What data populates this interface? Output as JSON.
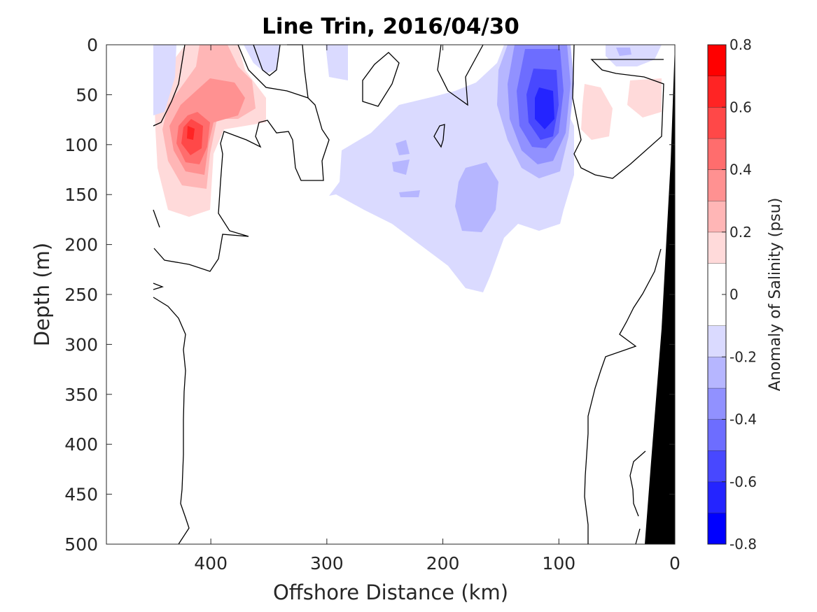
{
  "chart_data": {
    "type": "contour",
    "title": "Line Trin, 2016/04/30",
    "xlabel": "Offshore Distance (km)",
    "ylabel": "Depth (m)",
    "colorbar_label": "Anomaly of Salinity (psu)",
    "xlim": [
      490,
      0
    ],
    "ylim": [
      500,
      0
    ],
    "x_reversed": true,
    "y_reversed": true,
    "x_ticks": [
      400,
      300,
      200,
      100,
      0
    ],
    "y_ticks": [
      0,
      50,
      100,
      150,
      200,
      250,
      300,
      350,
      400,
      450,
      500
    ],
    "colorbar": {
      "range": [
        -0.8,
        0.8
      ],
      "levels": [
        -0.8,
        -0.7,
        -0.6,
        -0.5,
        -0.4,
        -0.3,
        -0.2,
        -0.1,
        0.1,
        0.2,
        0.3,
        0.4,
        0.5,
        0.6,
        0.7,
        0.8
      ],
      "colors": [
        "#0000ff",
        "#2424ff",
        "#4848ff",
        "#6d6dff",
        "#9191ff",
        "#b6b6ff",
        "#dadaff",
        "#ffffff",
        "#ffdada",
        "#ffb6b6",
        "#ff9191",
        "#ff6d6d",
        "#ff4848",
        "#ff2424",
        "#ff0000"
      ],
      "tick_values": [
        -0.8,
        -0.6,
        -0.4,
        -0.2,
        0,
        0.2,
        0.4,
        0.6,
        0.8
      ],
      "tick_labels": [
        "-0.8",
        "-0.6",
        "-0.4",
        "-0.2",
        "0",
        "0.2",
        "0.4",
        "0.6",
        "0.8"
      ]
    },
    "features": [
      {
        "name": "positive anomaly core",
        "x": 420,
        "y": 90,
        "value": 0.7
      },
      {
        "name": "negative anomaly core",
        "x": 115,
        "y": 70,
        "value": -0.7
      },
      {
        "name": "positive anomaly nearshore",
        "x": 60,
        "y": 60,
        "value": 0.2
      },
      {
        "name": "negative anomaly subsurface",
        "x": 185,
        "y": 190,
        "value": -0.3
      }
    ],
    "bathymetry_fill": "#000000",
    "contour_line_color": "#000000",
    "zero_contour": true,
    "grid": false
  },
  "title": "Line Trin, 2016/04/30",
  "xlabel": "Offshore Distance (km)",
  "ylabel": "Depth (m)",
  "colorbar_label": "Anomaly of Salinity (psu)"
}
